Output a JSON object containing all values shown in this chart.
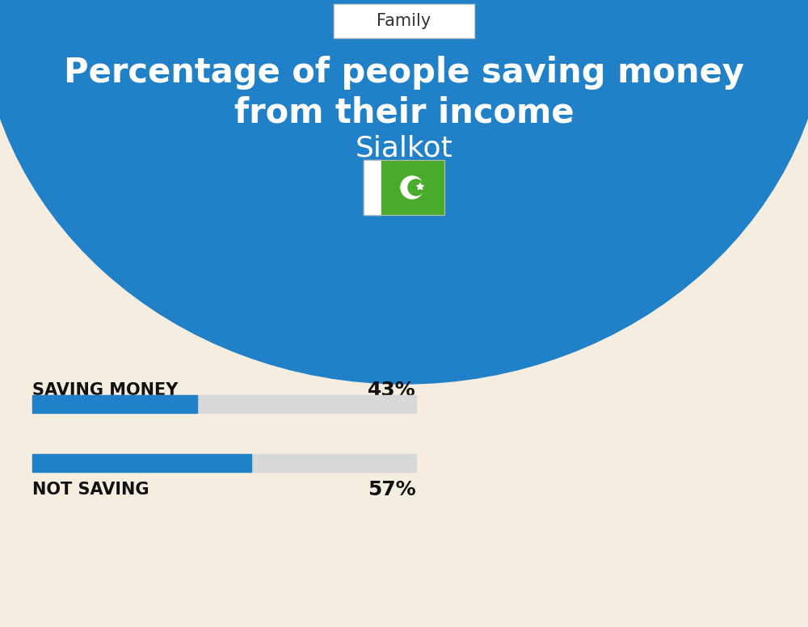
{
  "title_line1": "Percentage of people saving money",
  "title_line2": "from their income",
  "subtitle": "Sialkot",
  "category_label": "Family",
  "bg_color": "#F5EDE0",
  "blue_color": "#2080C8",
  "bar1_label": "SAVING MONEY",
  "bar1_value": 43,
  "bar1_pct": "43%",
  "bar2_label": "NOT SAVING",
  "bar2_value": 57,
  "bar2_pct": "57%",
  "bar_filled_color": "#2080C8",
  "bar_empty_color": "#D8D8D8",
  "text_white": "#FFFFFF",
  "text_dark": "#111111",
  "label_fontsize": 15,
  "pct_fontsize": 18,
  "title_fontsize": 30,
  "subtitle_fontsize": 26,
  "family_fontsize": 15,
  "flag_green": "#4AAA2A",
  "flag_dark_green": "#3A8C20"
}
